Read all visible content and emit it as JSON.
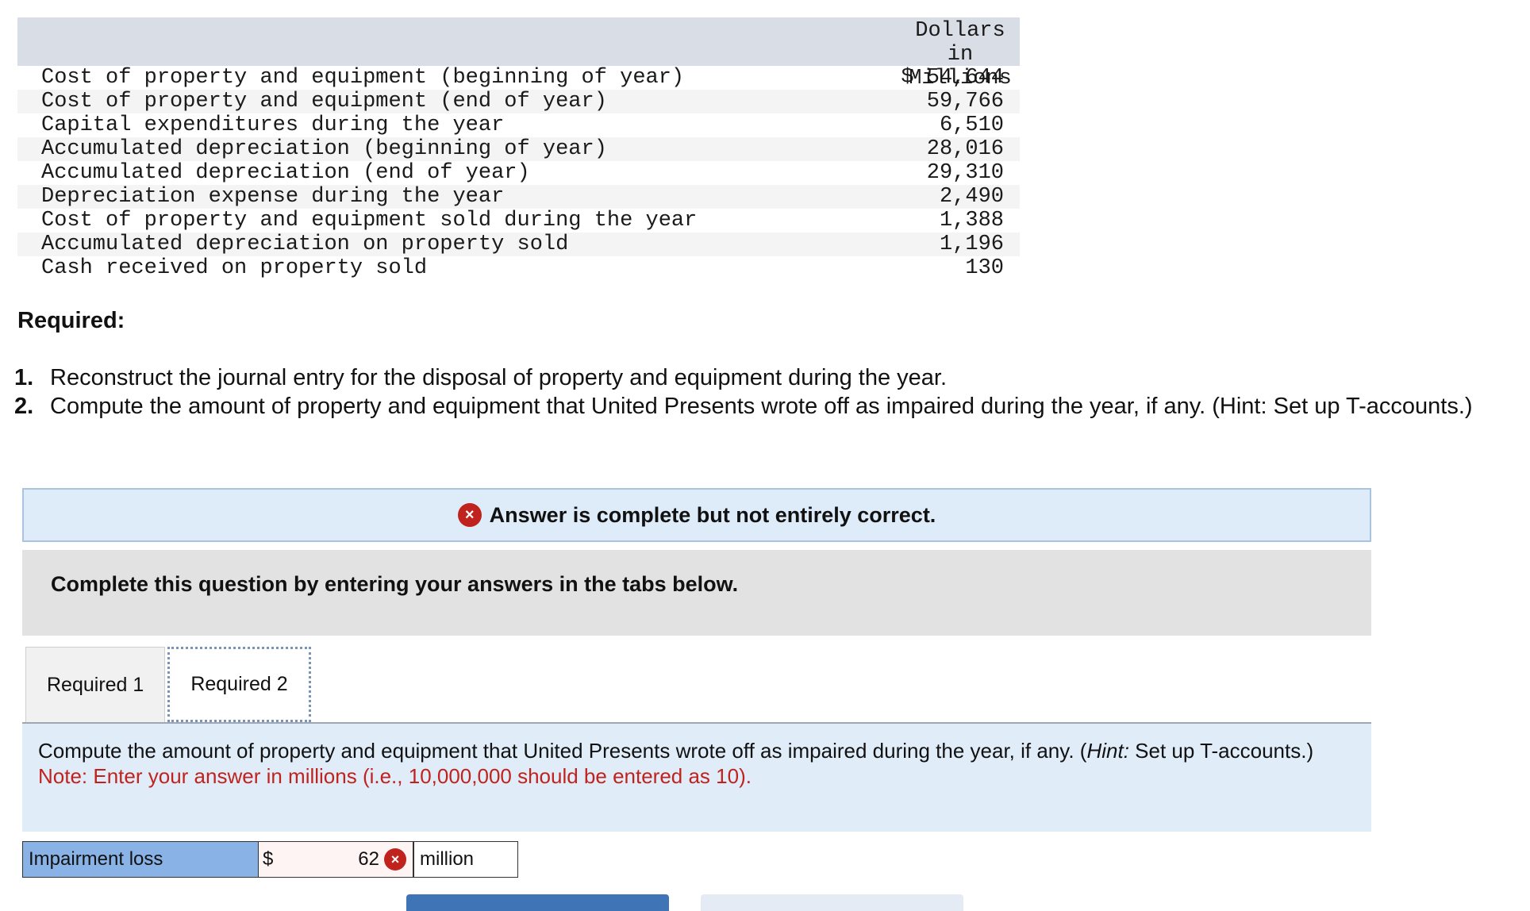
{
  "table": {
    "header": "Dollars in\nMillions",
    "rows": [
      {
        "label": "Cost of property and equipment (beginning of year)",
        "value": "$ 54,644"
      },
      {
        "label": "Cost of property and equipment (end of year)",
        "value": "59,766"
      },
      {
        "label": "Capital expenditures during the year",
        "value": "6,510"
      },
      {
        "label": "Accumulated depreciation (beginning of year)",
        "value": "28,016"
      },
      {
        "label": "Accumulated depreciation (end of year)",
        "value": "29,310"
      },
      {
        "label": "Depreciation expense during the year",
        "value": "2,490"
      },
      {
        "label": "Cost of property and equipment sold during the year",
        "value": "1,388"
      },
      {
        "label": "Accumulated depreciation on property sold",
        "value": "1,196"
      },
      {
        "label": "Cash received on property sold",
        "value": "130"
      }
    ]
  },
  "required_title": "Required:",
  "instructions": [
    {
      "num": "1.",
      "text": "Reconstruct the journal entry for the disposal of property and equipment during the year."
    },
    {
      "num": "2.",
      "text": "Compute the amount of property and equipment that United Presents wrote off as impaired during the year, if any. (Hint: Set up T-accounts.)"
    }
  ],
  "feedback": {
    "icon": "×",
    "text": "Answer is complete but not entirely correct."
  },
  "instruction_panel": "Complete this question by entering your answers in the tabs below.",
  "tabs": [
    {
      "label": "Required 1",
      "active": false
    },
    {
      "label": "Required 2",
      "active": true
    }
  ],
  "content": {
    "question_prefix": "Compute the amount of property and equipment that United Presents wrote off as impaired during the year, if any. (",
    "hint_label": "Hint:",
    "question_suffix": " Set up T-accounts.)",
    "note": "Note: Enter your answer in millions (i.e., 10,000,000 should be entered as 10)."
  },
  "answer": {
    "label": "Impairment loss",
    "currency": "$",
    "value": "62",
    "status_icon": "×",
    "unit": "million"
  },
  "colors": {
    "header_bg": "#d9dde5",
    "feedback_bg": "#deebf8",
    "error_red": "#c0231d",
    "label_blue": "#89b3e6",
    "button_blue": "#3f75b7"
  }
}
